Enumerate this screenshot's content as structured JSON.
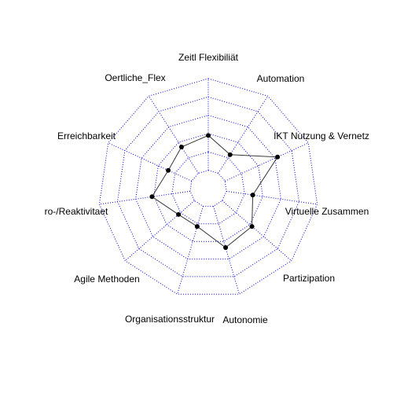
{
  "chart_data": {
    "type": "radar",
    "title": "",
    "axes": [
      "Zeitl Flexibiliät",
      "Automation",
      "IKT Nutzung & Vernetz",
      "Virtuelle Zusammen",
      "Partizipation",
      "Autonomie",
      "Organisationsstruktur",
      "Agile Methoden",
      "ro-/Reaktivitaet",
      "Erreichbarkeit",
      "Oertliche_Flex"
    ],
    "values": [
      0.38,
      0.24,
      0.63,
      0.29,
      0.43,
      0.47,
      0.23,
      0.23,
      0.42,
      0.28,
      0.34
    ],
    "range": [
      -0.2,
      1.0
    ],
    "grid_rings": 6,
    "grid_color": "#0000cc",
    "line_color": "#333333",
    "point_color": "#000000"
  }
}
